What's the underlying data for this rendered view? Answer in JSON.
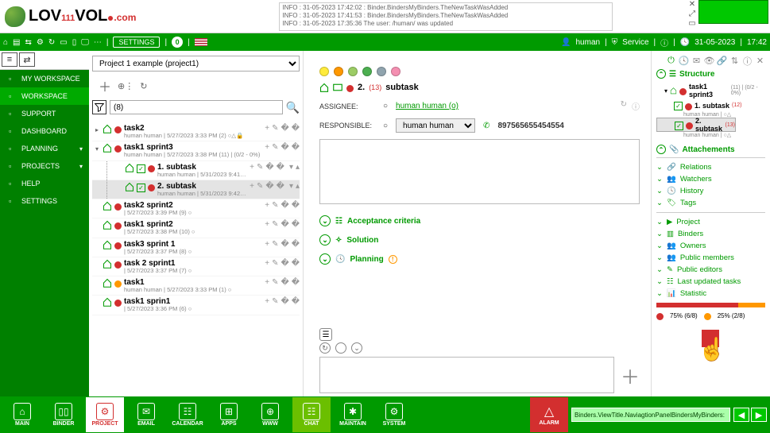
{
  "logo": {
    "text_a": "LOV",
    "text_111": "111",
    "text_b": "VOL",
    "dotcom": ".com"
  },
  "log_lines": [
    "INFO : 31-05-2023 17:42:02 : Binder.BindersMyBinders.TheNewTaskWasAdded",
    "INFO : 31-05-2023 17:41:53 : Binder.BindersMyBinders.TheNewTaskWasAdded",
    "INFO : 31-05-2023 17:35:36 The user: /human/ was updated"
  ],
  "greenbar": {
    "settings": "SETTINGS",
    "badge": "0",
    "user": "human",
    "service": "Service",
    "date": "31-05-2023",
    "time": "17:42"
  },
  "sidebar": [
    {
      "label": "MY WORKSPACE",
      "active": false,
      "chev": false
    },
    {
      "label": "WORKSPACE",
      "active": true,
      "chev": false
    },
    {
      "label": "SUPPORT",
      "active": false,
      "chev": false
    },
    {
      "label": "DASHBOARD",
      "active": false,
      "chev": false
    },
    {
      "label": "PLANNING",
      "active": false,
      "chev": true
    },
    {
      "label": "PROJECTS",
      "active": false,
      "chev": true
    },
    {
      "label": "HELP",
      "active": false,
      "chev": false
    },
    {
      "label": "SETTINGS",
      "active": false,
      "chev": false
    }
  ],
  "project_select": "Project 1 example (project1)",
  "search_value": "(8)",
  "tasks": [
    {
      "indent": 0,
      "tri": "▸",
      "color": "red",
      "title": "task2",
      "meta": "human human | 5/27/2023 3:33 PM (2) ○△🔒",
      "actions": "+✎🗑"
    },
    {
      "indent": 0,
      "tri": "▾",
      "color": "red",
      "title": "task1 sprint3",
      "meta": "human human | 5/27/2023 3:38 PM (11) | (0/2 - 0%)",
      "actions": "+✎🗑"
    },
    {
      "indent": 1,
      "tri": "",
      "check": true,
      "color": "red",
      "title": "1. subtask",
      "meta": "human human | 5/31/2023 9:41 PM (12) ○△",
      "actions": "+✎🗑 ▾▴"
    },
    {
      "indent": 1,
      "tri": "",
      "check": true,
      "color": "red",
      "title": "2. subtask",
      "meta": "human human | 5/31/2023 9:42 PM (13) ○△🔒",
      "actions": "+✎🗑 ▾▴",
      "selected": true
    },
    {
      "indent": 0,
      "tri": "",
      "color": "red",
      "title": "task2 sprint2",
      "meta": "| 5/27/2023 3:39 PM (9) ○",
      "actions": "+✎🗑"
    },
    {
      "indent": 0,
      "tri": "",
      "color": "red",
      "title": "task1 sprint2",
      "meta": "| 5/27/2023 3:38 PM (10) ○",
      "actions": "+✎🗑"
    },
    {
      "indent": 0,
      "tri": "",
      "color": "red",
      "title": "task3 sprint 1",
      "meta": "| 5/27/2023 3:37 PM (8) ○",
      "actions": "+✎🗑"
    },
    {
      "indent": 0,
      "tri": "",
      "color": "red",
      "title": "task 2 sprint1",
      "meta": "| 5/27/2023 3:37 PM (7) ○",
      "actions": "+✎🗑"
    },
    {
      "indent": 0,
      "tri": "",
      "color": "orange",
      "title": "task1",
      "meta": "human human | 5/27/2023 3:33 PM (1) ○",
      "actions": "+✎🗑"
    },
    {
      "indent": 0,
      "tri": "",
      "color": "red",
      "title": "task1 sprin1",
      "meta": "| 5/27/2023 3:36 PM (6) ○",
      "actions": "+✎🗑"
    }
  ],
  "detail": {
    "color_dots": [
      "#ffeb3b",
      "#ff9800",
      "#9ccc65",
      "#4caf50",
      "#90a4ae",
      "#f48fb1"
    ],
    "id": "2.",
    "count": "(13)",
    "title": "subtask",
    "assignee_label": "ASSIGNEE:",
    "assignee_value": "human human  (o)",
    "responsible_label": "RESPONSIBLE:",
    "responsible_value": "human human",
    "phone": "897565655454554",
    "sections": {
      "acc": "Acceptance criteria",
      "sol": "Solution",
      "plan": "Planning"
    }
  },
  "rightside": {
    "structure": "Structure",
    "tree": {
      "root": {
        "title": "task1 sprint3",
        "meta": "(11) | (0/2 - 0%)"
      },
      "c1": {
        "title": "1. subtask",
        "badge": "(12)",
        "meta": "human human | ○△"
      },
      "c2": {
        "title": "2. subtask",
        "badge": "(13)",
        "meta": "human human | ○△"
      }
    },
    "attachments": "Attachements",
    "links": [
      "Relations",
      "Watchers",
      "History",
      "Tags"
    ],
    "links2": [
      "Project",
      "Binders",
      "Owners",
      "Public members",
      "Public editors",
      "Last updated tasks",
      "Statistic"
    ],
    "stat1": "75% (6/8)",
    "stat2": "25% (2/8)"
  },
  "bottom": {
    "items": [
      {
        "label": "MAIN",
        "glyph": "⌂"
      },
      {
        "label": "BINDER",
        "glyph": "▯▯"
      },
      {
        "label": "PROJECT",
        "glyph": "⚙",
        "active": true
      },
      {
        "label": "EMAIL",
        "glyph": "✉"
      },
      {
        "label": "CALENDAR",
        "glyph": "☷"
      },
      {
        "label": "APPS",
        "glyph": "⊞"
      },
      {
        "label": "WWW",
        "glyph": "⊕"
      },
      {
        "label": "CHAT",
        "glyph": "☷",
        "hl": true
      },
      {
        "label": "MAINTAIN",
        "glyph": "✱"
      },
      {
        "label": "SYSTEM",
        "glyph": "⚙"
      }
    ],
    "alarm": "ALARM",
    "breadcrumb": "Binders.ViewTitle.NaviagtionPanelBindersMyBinders:"
  }
}
